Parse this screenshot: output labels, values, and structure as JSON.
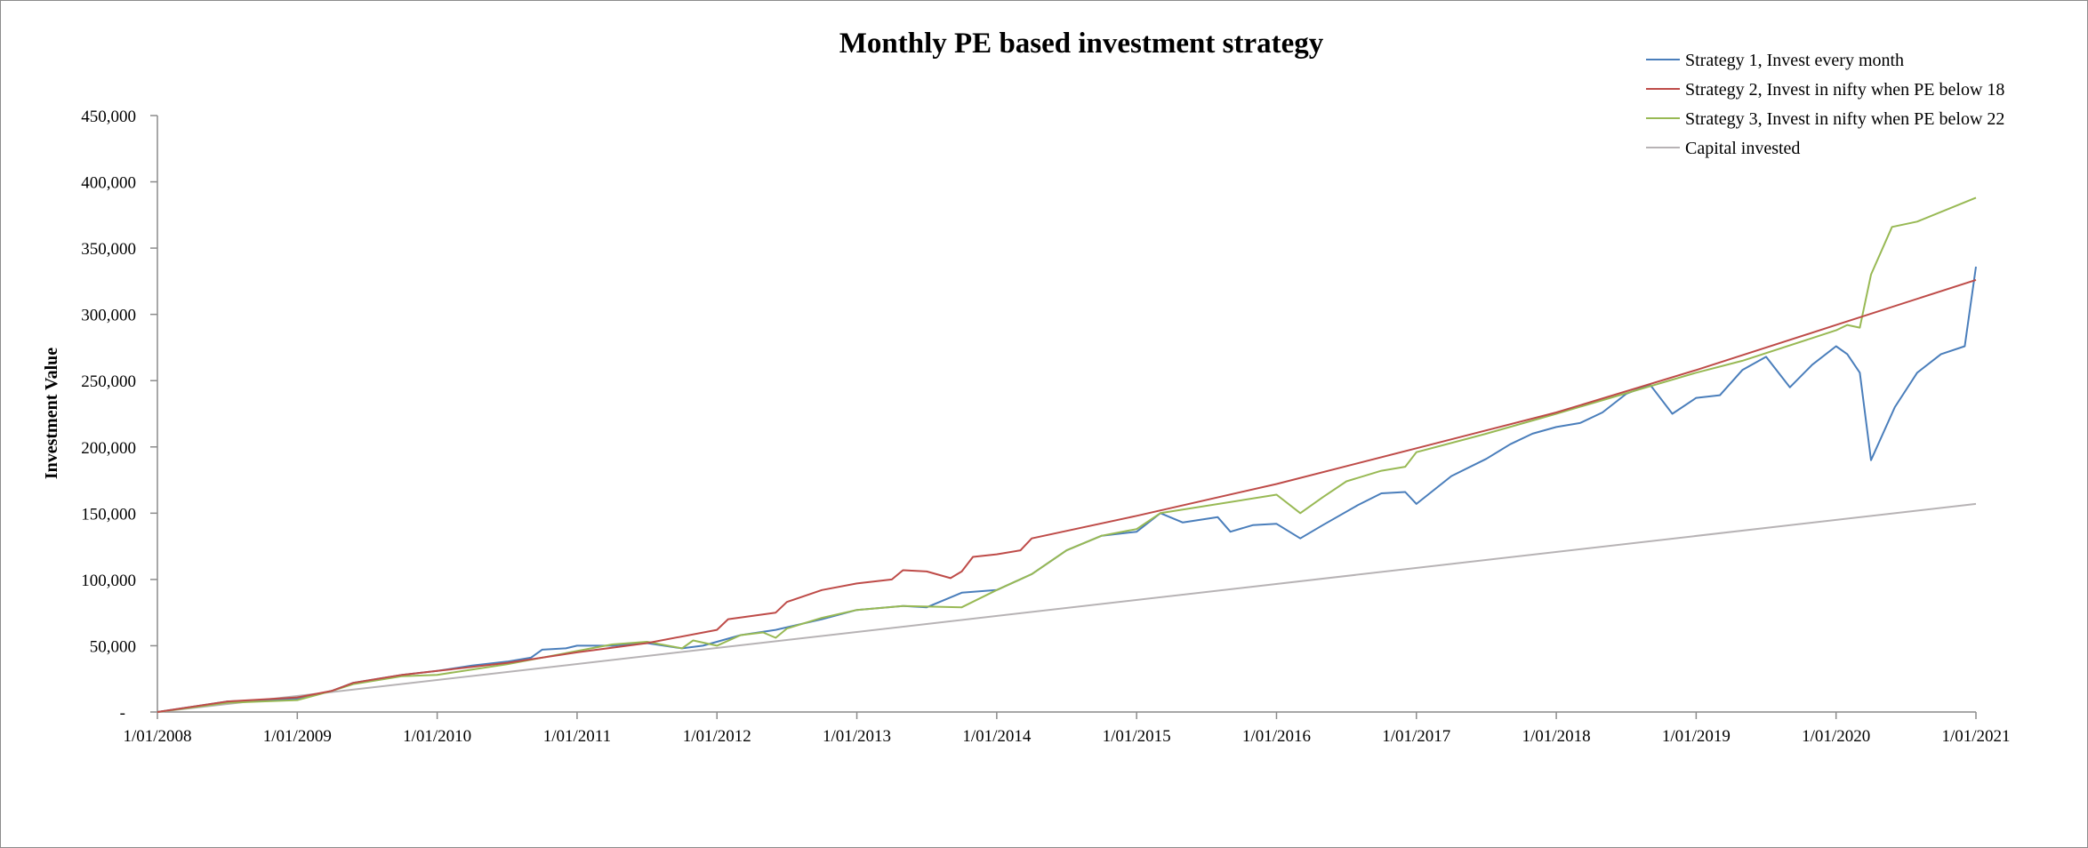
{
  "chart_data": {
    "type": "line",
    "title": "Monthly PE based investment strategy",
    "ylabel": "Investment Value",
    "xlabel": "",
    "ylim": [
      0,
      450000
    ],
    "y_ticks": [
      {
        "value": 0,
        "label": "-"
      },
      {
        "value": 50000,
        "label": "50,000"
      },
      {
        "value": 100000,
        "label": "100,000"
      },
      {
        "value": 150000,
        "label": "150,000"
      },
      {
        "value": 200000,
        "label": "200,000"
      },
      {
        "value": 250000,
        "label": "250,000"
      },
      {
        "value": 300000,
        "label": "300,000"
      },
      {
        "value": 350000,
        "label": "350,000"
      },
      {
        "value": 400000,
        "label": "400,000"
      },
      {
        "value": 450000,
        "label": "450,000"
      }
    ],
    "x_ticks": [
      "1/01/2008",
      "1/01/2009",
      "1/01/2010",
      "1/01/2011",
      "1/01/2012",
      "1/01/2013",
      "1/01/2014",
      "1/01/2015",
      "1/01/2016",
      "1/01/2017",
      "1/01/2018",
      "1/01/2019",
      "1/01/2020",
      "1/01/2021"
    ],
    "xlim": [
      2008.0,
      2021.0
    ],
    "grid": false,
    "legend_position": "top-right",
    "series": [
      {
        "name": "Strategy 1, Invest every month",
        "color": "#4a7ebb",
        "x": [
          2008.0,
          2008.5,
          2009.0,
          2009.25,
          2009.4,
          2009.75,
          2010.0,
          2010.25,
          2010.5,
          2010.67,
          2010.75,
          2010.92,
          2011.0,
          2011.25,
          2011.5,
          2011.75,
          2011.9,
          2012.0,
          2012.17,
          2012.42,
          2012.75,
          2013.0,
          2013.33,
          2013.5,
          2013.75,
          2014.0,
          2014.25,
          2014.5,
          2014.75,
          2015.0,
          2015.17,
          2015.33,
          2015.58,
          2015.67,
          2015.83,
          2016.0,
          2016.17,
          2016.33,
          2016.58,
          2016.75,
          2016.92,
          2017.0,
          2017.25,
          2017.5,
          2017.67,
          2017.83,
          2018.0,
          2018.17,
          2018.33,
          2018.5,
          2018.67,
          2018.83,
          2019.0,
          2019.17,
          2019.33,
          2019.5,
          2019.67,
          2019.83,
          2020.0,
          2020.08,
          2020.17,
          2020.25,
          2020.42,
          2020.58,
          2020.75,
          2020.92,
          2021.0
        ],
        "values": [
          0,
          8000,
          10000,
          16000,
          22000,
          28000,
          31000,
          35000,
          38000,
          41000,
          47000,
          48000,
          50000,
          50000,
          52000,
          48000,
          50000,
          53000,
          58000,
          62000,
          70000,
          77000,
          80000,
          79000,
          90000,
          92000,
          104000,
          122000,
          133000,
          136000,
          150000,
          143000,
          147000,
          136000,
          141000,
          142000,
          131000,
          141000,
          156000,
          165000,
          166000,
          157000,
          178000,
          191000,
          202000,
          210000,
          215000,
          218000,
          226000,
          240000,
          247000,
          225000,
          237000,
          239000,
          258000,
          268000,
          245000,
          262000,
          276000,
          270000,
          256000,
          190000,
          230000,
          256000,
          270000,
          276000,
          336000
        ]
      },
      {
        "name": "Strategy 2, Invest in nifty when PE below 18",
        "color": "#be4b48",
        "x": [
          2008.0,
          2008.5,
          2009.0,
          2009.25,
          2009.4,
          2009.75,
          2010.0,
          2010.5,
          2011.0,
          2011.5,
          2012.0,
          2012.08,
          2012.42,
          2012.5,
          2012.75,
          2013.0,
          2013.25,
          2013.33,
          2013.5,
          2013.67,
          2013.75,
          2013.83,
          2014.0,
          2014.17,
          2014.25,
          2015.0,
          2016.0,
          2017.0,
          2018.0,
          2019.0,
          2020.0,
          2021.0
        ],
        "values": [
          0,
          8000,
          11000,
          16000,
          22000,
          28000,
          31000,
          37000,
          45000,
          52000,
          62000,
          70000,
          75000,
          83000,
          92000,
          97000,
          100000,
          107000,
          106000,
          101000,
          106000,
          117000,
          119000,
          122000,
          131000,
          148000,
          172000,
          199000,
          226000,
          258000,
          292000,
          326000
        ]
      },
      {
        "name": "Strategy 3, Invest in nifty when PE below 22",
        "color": "#98b954",
        "x": [
          2008.0,
          2008.5,
          2009.0,
          2009.25,
          2009.4,
          2009.75,
          2010.0,
          2010.5,
          2011.0,
          2011.25,
          2011.5,
          2011.75,
          2011.83,
          2012.0,
          2012.17,
          2012.33,
          2012.42,
          2012.5,
          2012.75,
          2013.0,
          2013.33,
          2013.75,
          2014.0,
          2014.25,
          2014.5,
          2014.75,
          2015.0,
          2015.17,
          2016.0,
          2016.17,
          2016.33,
          2016.5,
          2016.75,
          2016.92,
          2017.0,
          2017.5,
          2018.0,
          2019.0,
          2019.33,
          2020.0,
          2020.08,
          2020.17,
          2020.25,
          2020.4,
          2020.58,
          2021.0
        ],
        "values": [
          0,
          7000,
          9000,
          16000,
          21000,
          27000,
          28000,
          36000,
          46000,
          51000,
          53000,
          48000,
          54000,
          50000,
          58000,
          60000,
          56000,
          63000,
          71000,
          77000,
          80000,
          79000,
          92000,
          104000,
          122000,
          133000,
          138000,
          150000,
          164000,
          150000,
          162000,
          174000,
          182000,
          185000,
          196000,
          210000,
          225000,
          256000,
          265000,
          288000,
          292000,
          290000,
          330000,
          366000,
          370000,
          388000
        ]
      },
      {
        "name": "Capital invested",
        "color": "#b7b3b5",
        "x": [
          2008.0,
          2021.0
        ],
        "values": [
          0,
          157000
        ]
      }
    ]
  }
}
